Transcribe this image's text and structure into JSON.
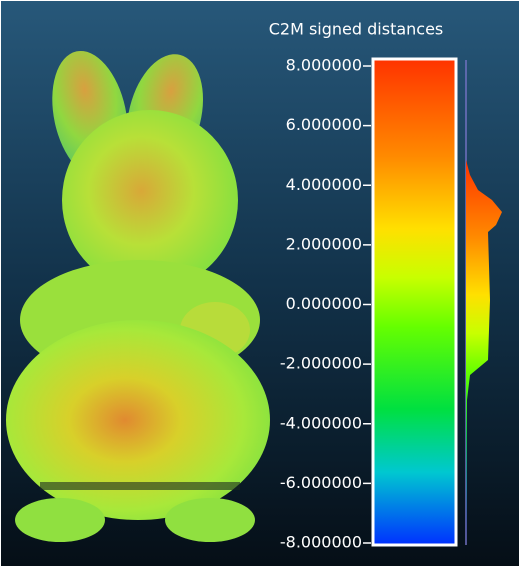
{
  "scale": {
    "title": "C2M signed distances",
    "labels": [
      "8.000000",
      "6.000000",
      "4.000000",
      "2.000000",
      "0.000000",
      "-2.000000",
      "-4.000000",
      "-6.000000",
      "-8.000000"
    ]
  }
}
